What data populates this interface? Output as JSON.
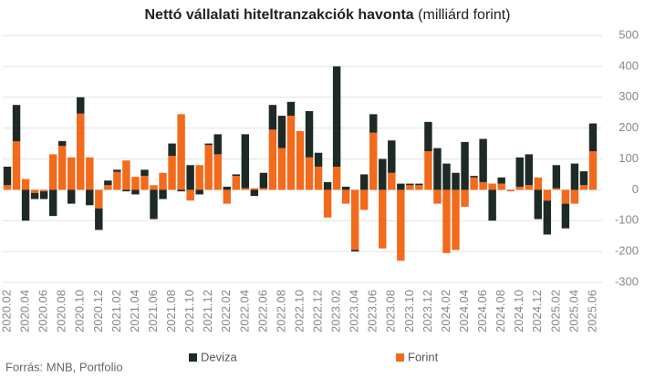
{
  "chart_data": {
    "type": "stacked_bar",
    "title": "Nettó vállalati hiteltranzakciók havonta",
    "subtitle": "(milliárd forint)",
    "source": "Forrás: MNB, Portfolio",
    "categories": [
      "2020.02",
      null,
      "2020.04",
      null,
      "2020.06",
      null,
      "2020.08",
      null,
      "2020.10",
      null,
      "2020.12",
      null,
      "2021.02",
      null,
      "2021.04",
      null,
      "2021.06",
      null,
      "2021.08",
      null,
      "2021.10",
      null,
      "2021.12",
      null,
      "2022.02",
      null,
      "2022.04",
      null,
      "2022.06",
      null,
      "2022.08",
      null,
      "2022.10",
      null,
      "2022.12",
      null,
      "2023.02",
      null,
      "2023.04",
      null,
      "2023.06",
      null,
      "2023.08",
      null,
      "2023.10",
      null,
      "2023.12",
      null,
      "2024.02",
      null,
      "2024.04",
      null,
      "2024.06",
      null,
      "2024.08",
      null,
      "2024.10",
      null,
      "2024.12",
      null,
      "2025.02",
      null,
      "2025.04",
      null,
      "2025.06"
    ],
    "series": [
      {
        "name": "Deviza",
        "color": "#1e2a25",
        "values": [
          60,
          118,
          -100,
          -20,
          -25,
          -85,
          16,
          -45,
          53,
          -50,
          -70,
          15,
          7,
          -5,
          -15,
          20,
          -95,
          -30,
          40,
          -5,
          80,
          -15,
          5,
          65,
          10,
          5,
          175,
          -20,
          50,
          80,
          105,
          45,
          0,
          150,
          45,
          25,
          325,
          10,
          -5,
          50,
          60,
          100,
          105,
          20,
          5,
          5,
          95,
          135,
          85,
          55,
          155,
          5,
          140,
          -100,
          20,
          0,
          95,
          100,
          -95,
          -110,
          75,
          -80,
          85,
          45,
          90
        ]
      },
      {
        "name": "Forint",
        "color": "#f26a1b",
        "values": [
          15,
          157,
          35,
          -10,
          -5,
          115,
          142,
          105,
          247,
          105,
          -60,
          15,
          58,
          95,
          42,
          45,
          15,
          55,
          110,
          245,
          -35,
          80,
          145,
          115,
          -45,
          45,
          5,
          5,
          5,
          195,
          135,
          240,
          190,
          105,
          75,
          -90,
          75,
          -45,
          -195,
          -65,
          185,
          -190,
          55,
          -230,
          15,
          15,
          125,
          -45,
          -205,
          -195,
          -55,
          40,
          25,
          20,
          20,
          -5,
          10,
          15,
          40,
          -35,
          5,
          -45,
          -45,
          15,
          125
        ]
      }
    ],
    "ylim": [
      -300,
      500
    ],
    "yticks": [
      -300,
      -200,
      -100,
      0,
      100,
      200,
      300,
      400,
      500
    ],
    "grid": true
  }
}
